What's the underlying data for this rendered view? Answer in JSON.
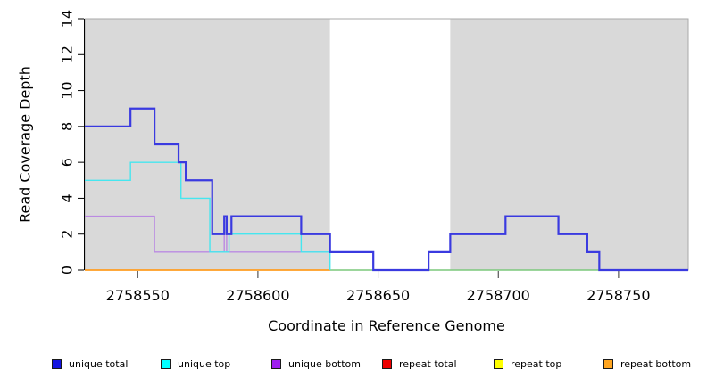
{
  "chart_data": {
    "type": "line",
    "subtype": "step-coverage-plot",
    "title": "",
    "xlabel": "Coordinate in Reference Genome",
    "ylabel": "Read Coverage Depth",
    "xlim": [
      2758528,
      2758779
    ],
    "ylim": [
      0,
      14
    ],
    "x_ticks": [
      2758550,
      2758600,
      2758650,
      2758700,
      2758750
    ],
    "y_ticks": [
      0,
      2,
      4,
      6,
      8,
      10,
      12,
      14
    ],
    "grid": false,
    "legend_position": "bottom",
    "background_regions": [
      {
        "x1": 2758528,
        "x2": 2758630,
        "fill": "#d9d9d9",
        "note": "covered-left"
      },
      {
        "x1": 2758630,
        "x2": 2758680,
        "fill": "#ffffff",
        "note": "gap-region"
      },
      {
        "x1": 2758680,
        "x2": 2758779,
        "fill": "#d9d9d9",
        "note": "covered-right"
      }
    ],
    "series": [
      {
        "name": "repeat total",
        "color": "#ee0000",
        "width": 1,
        "end": 2758630,
        "steps": [
          [
            2758528,
            0
          ]
        ]
      },
      {
        "name": "repeat top",
        "color": "#ffff33",
        "width": 1,
        "end": 2758630,
        "steps": [
          [
            2758528,
            0
          ]
        ]
      },
      {
        "name": "baseline-green (unlabeled)",
        "color": "#7cc87c",
        "width": 1.4,
        "end": 2758779,
        "steps": [
          [
            2758630,
            0
          ]
        ]
      },
      {
        "name": "repeat bottom",
        "color": "#ff9d20",
        "width": 1.8,
        "end": 2758630,
        "steps": [
          [
            2758528,
            0
          ]
        ]
      },
      {
        "name": "unique bottom",
        "color": "#bb8ae2",
        "width": 1.4,
        "end": 2758648,
        "steps": [
          [
            2758528,
            3
          ],
          [
            2758557,
            1
          ],
          [
            2758586,
            3
          ],
          [
            2758587,
            1
          ],
          [
            2758648,
            0
          ]
        ]
      },
      {
        "name": "unique top",
        "color": "#45e6ef",
        "width": 1.4,
        "end": 2758630,
        "steps": [
          [
            2758528,
            5
          ],
          [
            2758547,
            6
          ],
          [
            2758568,
            4
          ],
          [
            2758580,
            1
          ],
          [
            2758588,
            2
          ],
          [
            2758618,
            1
          ],
          [
            2758630,
            0
          ]
        ]
      },
      {
        "name": "unique total",
        "color": "#3a3ae0",
        "width": 2.2,
        "end": 2758779,
        "steps": [
          [
            2758528,
            8
          ],
          [
            2758547,
            9
          ],
          [
            2758557,
            7
          ],
          [
            2758567,
            6
          ],
          [
            2758570,
            5
          ],
          [
            2758581,
            2
          ],
          [
            2758586,
            3
          ],
          [
            2758587,
            2
          ],
          [
            2758589,
            3
          ],
          [
            2758618,
            2
          ],
          [
            2758630,
            1
          ],
          [
            2758648,
            0
          ],
          [
            2758671,
            1
          ],
          [
            2758680,
            2
          ],
          [
            2758703,
            3
          ],
          [
            2758725,
            2
          ],
          [
            2758737,
            1
          ],
          [
            2758742,
            0
          ]
        ]
      }
    ]
  },
  "legend": {
    "items": [
      {
        "label": "unique total",
        "color": "#1515e0"
      },
      {
        "label": "unique top",
        "color": "#00ffff"
      },
      {
        "label": "unique bottom",
        "color": "#a020f0"
      },
      {
        "label": "repeat total",
        "color": "#ee0000"
      },
      {
        "label": "repeat top",
        "color": "#ffff00"
      },
      {
        "label": "repeat bottom",
        "color": "#ffa520"
      }
    ]
  },
  "colors": {
    "plot_background": "#d9d9d9",
    "plot_border": "#a9a9a9",
    "gap_region": "#ffffff",
    "axis": "#000000"
  }
}
